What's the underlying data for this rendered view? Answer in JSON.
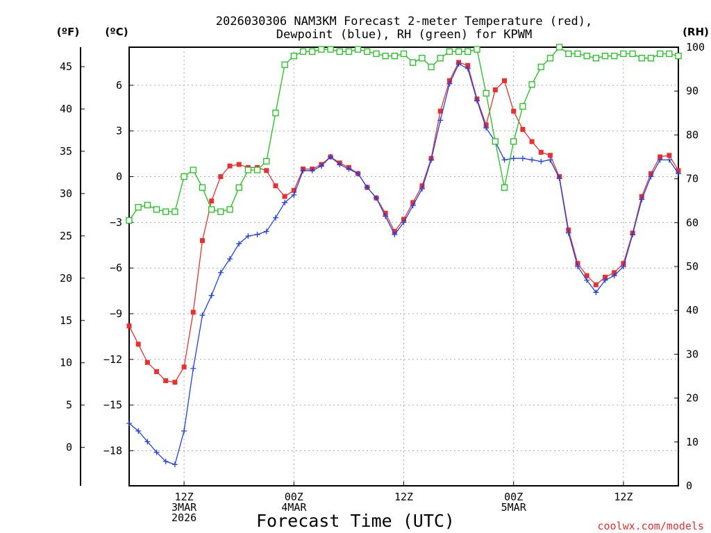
{
  "chart_data": {
    "type": "line",
    "title_line1": "2026030306 NAM3KM Forecast 2-meter Temperature (red),",
    "title_line2": "Dewpoint (blue), RH (green) for KPWM",
    "xlabel": "Forecast Time (UTC)",
    "credit": "coolwx.com/models",
    "units": {
      "fahrenheit": "(ºF)",
      "celsius": "(ºC)",
      "rh": "(RH)"
    },
    "x_range_hours": [
      0,
      60
    ],
    "celsius_range": [
      -20.3,
      8.5
    ],
    "rh_range": [
      0,
      100
    ],
    "celsius_ticks": [
      {
        "value": 6,
        "label": "6"
      },
      {
        "value": 3,
        "label": "3"
      },
      {
        "value": 0,
        "label": "0"
      },
      {
        "value": -3,
        "label": "−3"
      },
      {
        "value": -6,
        "label": "−6"
      },
      {
        "value": -9,
        "label": "−9"
      },
      {
        "value": -12,
        "label": "−12"
      },
      {
        "value": -15,
        "label": "−15"
      },
      {
        "value": -18,
        "label": "−18"
      }
    ],
    "fahrenheit_ticks": [
      {
        "value": 45,
        "label": "45"
      },
      {
        "value": 40,
        "label": "40"
      },
      {
        "value": 35,
        "label": "35"
      },
      {
        "value": 30,
        "label": "30"
      },
      {
        "value": 25,
        "label": "25"
      },
      {
        "value": 20,
        "label": "20"
      },
      {
        "value": 15,
        "label": "15"
      },
      {
        "value": 10,
        "label": "10"
      },
      {
        "value": 5,
        "label": "5"
      },
      {
        "value": 0,
        "label": "0"
      }
    ],
    "rh_ticks": [
      {
        "value": 100,
        "label": "100"
      },
      {
        "value": 90,
        "label": "90"
      },
      {
        "value": 80,
        "label": "80"
      },
      {
        "value": 70,
        "label": "70"
      },
      {
        "value": 60,
        "label": "60"
      },
      {
        "value": 50,
        "label": "50"
      },
      {
        "value": 40,
        "label": "40"
      },
      {
        "value": 30,
        "label": "30"
      },
      {
        "value": 20,
        "label": "20"
      },
      {
        "value": 10,
        "label": "10"
      },
      {
        "value": 0,
        "label": "0"
      }
    ],
    "time_ticks": [
      {
        "hour": 6,
        "lines": [
          "12Z",
          "3MAR",
          "2026"
        ]
      },
      {
        "hour": 18,
        "lines": [
          "00Z",
          "4MAR"
        ]
      },
      {
        "hour": 30,
        "lines": [
          "12Z"
        ]
      },
      {
        "hour": 42,
        "lines": [
          "00Z",
          "5MAR"
        ]
      },
      {
        "hour": 54,
        "lines": [
          "12Z"
        ]
      }
    ],
    "series": [
      {
        "name": "Temperature",
        "unit": "C",
        "color": "#e83030",
        "marker": "filled-square",
        "hours": [
          0,
          1,
          2,
          3,
          4,
          5,
          6,
          7,
          8,
          9,
          10,
          11,
          12,
          13,
          14,
          15,
          16,
          17,
          18,
          19,
          20,
          21,
          22,
          23,
          24,
          25,
          26,
          27,
          28,
          29,
          30,
          31,
          32,
          33,
          34,
          35,
          36,
          37,
          38,
          39,
          40,
          41,
          42,
          43,
          44,
          45,
          46,
          47,
          48,
          49,
          50,
          51,
          52,
          53,
          54,
          55,
          56,
          57,
          58,
          59,
          60
        ],
        "values": [
          -9.8,
          -11,
          -12.2,
          -12.8,
          -13.4,
          -13.5,
          -12.5,
          -8.9,
          -4.2,
          -1.6,
          0,
          0.7,
          0.8,
          0.6,
          0.6,
          0.4,
          -0.6,
          -1.3,
          -0.9,
          0.5,
          0.5,
          0.8,
          1.3,
          0.9,
          0.6,
          0.2,
          -0.7,
          -1.4,
          -2.4,
          -3.6,
          -2.8,
          -1.7,
          -0.6,
          1.2,
          4.3,
          6.3,
          7.5,
          7.3,
          5.1,
          3.4,
          5.7,
          6.3,
          4.3,
          3.1,
          2.3,
          1.6,
          1.4,
          0,
          -3.5,
          -5.7,
          -6.5,
          -7.1,
          -6.6,
          -6.3,
          -5.7,
          -3.7,
          -1.3,
          0.2,
          1.3,
          1.4,
          0.4
        ]
      },
      {
        "name": "Dewpoint",
        "unit": "C",
        "color": "#2040e0",
        "marker": "plus",
        "hours": [
          0,
          1,
          2,
          3,
          4,
          5,
          6,
          7,
          8,
          9,
          10,
          11,
          12,
          13,
          14,
          15,
          16,
          17,
          18,
          19,
          20,
          21,
          22,
          23,
          24,
          25,
          26,
          27,
          28,
          29,
          30,
          31,
          32,
          33,
          34,
          35,
          36,
          37,
          38,
          39,
          40,
          41,
          42,
          43,
          44,
          45,
          46,
          47,
          48,
          49,
          50,
          51,
          52,
          53,
          54,
          55,
          56,
          57,
          58,
          59,
          60
        ],
        "values": [
          -16.2,
          -16.7,
          -17.4,
          -18.1,
          -18.7,
          -18.9,
          -16.7,
          -12.6,
          -9.1,
          -7.8,
          -6.3,
          -5.4,
          -4.4,
          -3.9,
          -3.8,
          -3.6,
          -2.7,
          -1.7,
          -1.2,
          0.4,
          0.4,
          0.7,
          1.3,
          0.8,
          0.5,
          0.2,
          -0.7,
          -1.4,
          -2.6,
          -3.8,
          -3,
          -1.9,
          -0.8,
          1.1,
          3.7,
          6.1,
          7.4,
          7.1,
          5,
          3.2,
          2.3,
          1.1,
          1.2,
          1.2,
          1.1,
          1,
          1.1,
          -0.1,
          -3.7,
          -5.9,
          -6.8,
          -7.6,
          -6.8,
          -6.5,
          -5.9,
          -3.8,
          -1.5,
          0,
          1.1,
          1.1,
          0.2
        ]
      },
      {
        "name": "RH",
        "unit": "%",
        "color": "#20c020",
        "marker": "open-square",
        "hours": [
          0,
          1,
          2,
          3,
          4,
          5,
          6,
          7,
          8,
          9,
          10,
          11,
          12,
          13,
          14,
          15,
          16,
          17,
          18,
          19,
          20,
          21,
          22,
          23,
          24,
          25,
          26,
          27,
          28,
          29,
          30,
          31,
          32,
          33,
          34,
          35,
          36,
          37,
          38,
          39,
          40,
          41,
          42,
          43,
          44,
          45,
          46,
          47,
          48,
          49,
          50,
          51,
          52,
          53,
          54,
          55,
          56,
          57,
          58,
          59,
          60
        ],
        "values": [
          60.5,
          63.5,
          64,
          63,
          62.5,
          62.5,
          70.5,
          72,
          68,
          63,
          62.5,
          63,
          68,
          72,
          72,
          74,
          85,
          96,
          98,
          99,
          99,
          99.5,
          99.5,
          99,
          99,
          99.5,
          99,
          98.5,
          98,
          98,
          98.5,
          96.5,
          97.5,
          95.5,
          97.5,
          99,
          99,
          99,
          99.5,
          89.5,
          78.5,
          68,
          78.5,
          86.5,
          91.5,
          95.5,
          97.5,
          100,
          98.5,
          98.5,
          98,
          97.5,
          98,
          98,
          98.5,
          98.5,
          97.5,
          97.5,
          98.5,
          98.5,
          98
        ]
      }
    ]
  }
}
